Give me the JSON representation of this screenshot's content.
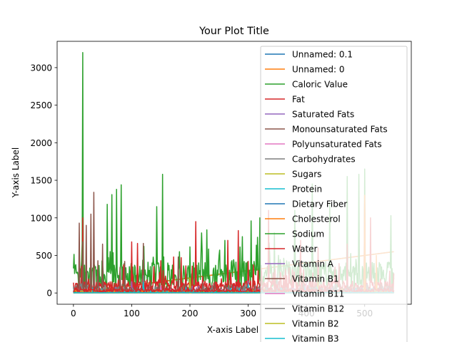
{
  "chart_data": {
    "type": "line",
    "title": "Your Plot Title",
    "xlabel": "X-axis Label",
    "ylabel": "Y-axis Label",
    "xlim": [
      -28,
      580
    ],
    "ylim": [
      -150,
      3350
    ],
    "xticks": [
      0,
      100,
      200,
      300,
      400,
      500
    ],
    "yticks": [
      0,
      500,
      1000,
      1500,
      2000,
      2500,
      3000
    ],
    "grid": false,
    "legend_position": "upper-right",
    "n_points": 551,
    "legend": [
      {
        "name": "Unnamed: 0.1",
        "color": "#1f77b4"
      },
      {
        "name": "Unnamed: 0",
        "color": "#ff7f0e"
      },
      {
        "name": "Caloric Value",
        "color": "#2ca02c"
      },
      {
        "name": "Fat",
        "color": "#d62728"
      },
      {
        "name": "Saturated Fats",
        "color": "#9467bd"
      },
      {
        "name": "Monounsaturated Fats",
        "color": "#8c564b"
      },
      {
        "name": "Polyunsaturated Fats",
        "color": "#e377c2"
      },
      {
        "name": "Carbohydrates",
        "color": "#7f7f7f"
      },
      {
        "name": "Sugars",
        "color": "#bcbd22"
      },
      {
        "name": "Protein",
        "color": "#17becf"
      },
      {
        "name": "Dietary Fiber",
        "color": "#1f77b4"
      },
      {
        "name": "Cholesterol",
        "color": "#ff7f0e"
      },
      {
        "name": "Sodium",
        "color": "#2ca02c"
      },
      {
        "name": "Water",
        "color": "#d62728"
      },
      {
        "name": "Vitamin A",
        "color": "#9467bd"
      },
      {
        "name": "Vitamin B1",
        "color": "#8c564b"
      },
      {
        "name": "Vitamin B11",
        "color": "#e377c2"
      },
      {
        "name": "Vitamin B12",
        "color": "#7f7f7f"
      },
      {
        "name": "Vitamin B2",
        "color": "#bcbd22"
      },
      {
        "name": "Vitamin B3",
        "color": "#17becf"
      }
    ],
    "series": [
      {
        "name": "Unnamed: 0.1",
        "color": "#1f77b4",
        "kind": "linear",
        "values": [
          [
            0,
            0
          ],
          [
            550,
            550
          ]
        ]
      },
      {
        "name": "Unnamed: 0",
        "color": "#ff7f0e",
        "kind": "linear",
        "values": [
          [
            0,
            0
          ],
          [
            550,
            550
          ]
        ]
      },
      {
        "name": "Caloric Value",
        "color": "#2ca02c",
        "kind": "noise",
        "base": 230,
        "amp": 360,
        "spikes": [
          [
            16,
            3200
          ],
          [
            58,
            1180
          ],
          [
            66,
            1310
          ],
          [
            74,
            1380
          ],
          [
            82,
            1440
          ],
          [
            143,
            1150
          ],
          [
            153,
            1580
          ],
          [
            220,
            800
          ],
          [
            229,
            840
          ],
          [
            260,
            700
          ],
          [
            290,
            750
          ],
          [
            305,
            960
          ],
          [
            320,
            1000
          ],
          [
            345,
            800
          ],
          [
            380,
            1100
          ],
          [
            410,
            1450
          ],
          [
            440,
            1200
          ],
          [
            470,
            1550
          ],
          [
            490,
            1580
          ],
          [
            500,
            1650
          ],
          [
            545,
            1030
          ]
        ]
      },
      {
        "name": "Fat",
        "color": "#d62728",
        "kind": "noise",
        "base": 90,
        "amp": 300,
        "spikes": [
          [
            16,
            1000
          ],
          [
            100,
            680
          ],
          [
            110,
            660
          ],
          [
            150,
            430
          ],
          [
            172,
            480
          ],
          [
            185,
            470
          ],
          [
            210,
            950
          ],
          [
            265,
            700
          ],
          [
            283,
            830
          ],
          [
            300,
            420
          ],
          [
            335,
            1100
          ],
          [
            390,
            700
          ],
          [
            420,
            600
          ],
          [
            470,
            650
          ],
          [
            500,
            1250
          ],
          [
            510,
            1000
          ]
        ]
      },
      {
        "name": "Saturated Fats",
        "color": "#9467bd",
        "kind": "noise",
        "base": 20,
        "amp": 60,
        "spikes": [
          [
            30,
            180
          ],
          [
            100,
            150
          ],
          [
            300,
            160
          ]
        ]
      },
      {
        "name": "Monounsaturated Fats",
        "color": "#8c564b",
        "kind": "noise",
        "base": 40,
        "amp": 70,
        "spikes": [
          [
            10,
            930
          ],
          [
            16,
            680
          ],
          [
            22,
            900
          ],
          [
            30,
            1050
          ],
          [
            35,
            1340
          ],
          [
            42,
            430
          ],
          [
            50,
            650
          ],
          [
            80,
            340
          ],
          [
            88,
            420
          ],
          [
            120,
            660
          ],
          [
            180,
            480
          ]
        ]
      },
      {
        "name": "Polyunsaturated Fats",
        "color": "#e377c2",
        "kind": "noise",
        "base": 15,
        "amp": 40,
        "spikes": [
          [
            150,
            100
          ],
          [
            400,
            150
          ]
        ]
      },
      {
        "name": "Carbohydrates",
        "color": "#7f7f7f",
        "kind": "noise",
        "base": 25,
        "amp": 80,
        "spikes": [
          [
            120,
            230
          ],
          [
            350,
            250
          ],
          [
            520,
            300
          ]
        ]
      },
      {
        "name": "Sugars",
        "color": "#bcbd22",
        "kind": "noise",
        "base": 12,
        "amp": 40,
        "spikes": [
          [
            200,
            200
          ],
          [
            420,
            180
          ]
        ]
      },
      {
        "name": "Protein",
        "color": "#17becf",
        "kind": "noise",
        "base": 15,
        "amp": 50,
        "spikes": [
          [
            120,
            140
          ],
          [
            300,
            110
          ]
        ]
      },
      {
        "name": "Dietary Fiber",
        "color": "#1f77b4",
        "kind": "noise",
        "base": 4,
        "amp": 12,
        "spikes": []
      },
      {
        "name": "Cholesterol",
        "color": "#ff7f0e",
        "kind": "noise",
        "base": 10,
        "amp": 30,
        "spikes": [
          [
            500,
            1300
          ],
          [
            520,
            500
          ]
        ]
      },
      {
        "name": "Sodium",
        "color": "#2ca02c",
        "kind": "noise",
        "base": 5,
        "amp": 15,
        "spikes": []
      },
      {
        "name": "Water",
        "color": "#d62728",
        "kind": "noise",
        "base": 30,
        "amp": 60,
        "spikes": []
      },
      {
        "name": "Vitamin A",
        "color": "#9467bd",
        "kind": "noise",
        "base": 3,
        "amp": 8,
        "spikes": []
      },
      {
        "name": "Vitamin B1",
        "color": "#8c564b",
        "kind": "noise",
        "base": 2,
        "amp": 5,
        "spikes": []
      },
      {
        "name": "Vitamin B11",
        "color": "#e377c2",
        "kind": "noise",
        "base": 2,
        "amp": 5,
        "spikes": []
      },
      {
        "name": "Vitamin B12",
        "color": "#7f7f7f",
        "kind": "noise",
        "base": 2,
        "amp": 5,
        "spikes": []
      },
      {
        "name": "Vitamin B2",
        "color": "#bcbd22",
        "kind": "noise",
        "base": 2,
        "amp": 5,
        "spikes": []
      },
      {
        "name": "Vitamin B3",
        "color": "#17becf",
        "kind": "noise",
        "base": 3,
        "amp": 10,
        "spikes": []
      }
    ]
  }
}
